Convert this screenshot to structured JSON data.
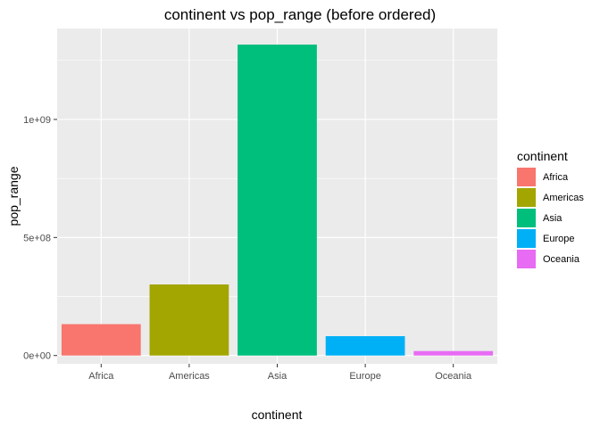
{
  "chart_data": {
    "type": "bar",
    "title": "continent vs pop_range (before ordered)",
    "xlabel": "continent",
    "ylabel": "pop_range",
    "categories": [
      "Africa",
      "Americas",
      "Asia",
      "Europe",
      "Oceania"
    ],
    "values": [
      133000000,
      301000000,
      1317000000,
      82000000,
      19000000
    ],
    "colors": [
      "#F8766D",
      "#A3A500",
      "#00BF7D",
      "#00B0F6",
      "#E76BF3"
    ],
    "ylim": [
      -35000000,
      1385000000
    ],
    "yticks": [
      {
        "value": 0,
        "label": "0e+00"
      },
      {
        "value": 500000000,
        "label": "5e+08"
      },
      {
        "value": 1000000000,
        "label": "1e+09"
      }
    ],
    "yminor": [
      250000000,
      750000000,
      1250000000
    ],
    "grid": true,
    "legend": {
      "title": "continent",
      "position": "right",
      "items": [
        "Africa",
        "Americas",
        "Asia",
        "Europe",
        "Oceania"
      ]
    }
  }
}
